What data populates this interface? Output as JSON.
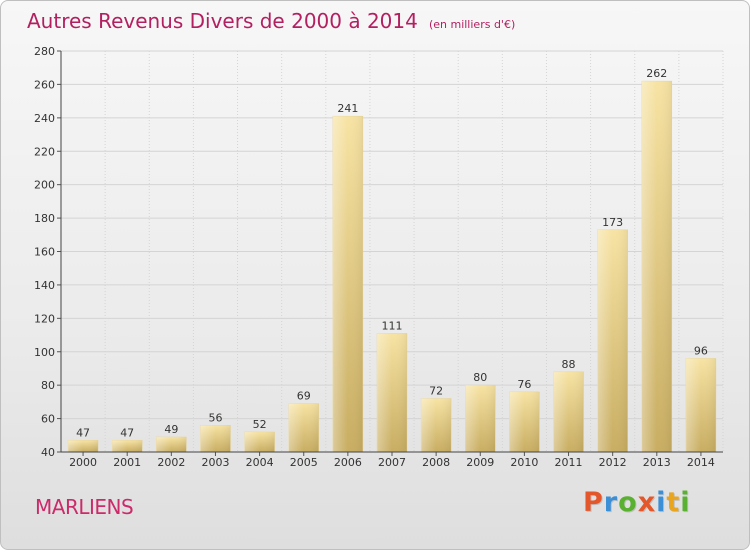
{
  "header": {
    "title": "Autres Revenus Divers de 2000 à 2014",
    "subtitle": "(en milliers d'€)"
  },
  "footer": {
    "commune": "MARLIENS",
    "brand": "Proxiti",
    "brand_colors": [
      "#e3572b",
      "#3a8fd6",
      "#5ab031",
      "#e3572b",
      "#3a8fd6",
      "#e8a51d",
      "#5ab031"
    ]
  },
  "colors": {
    "bar_light": "#f7e3a3",
    "bar_dark": "#c8ad62",
    "grid": "#d4d4d4",
    "title": "#b22060"
  },
  "chart_data": {
    "type": "bar",
    "categories": [
      "2000",
      "2001",
      "2002",
      "2003",
      "2004",
      "2005",
      "2006",
      "2007",
      "2008",
      "2009",
      "2010",
      "2011",
      "2012",
      "2013",
      "2014"
    ],
    "values": [
      47,
      47,
      49,
      56,
      52,
      69,
      241,
      111,
      72,
      80,
      76,
      88,
      173,
      262,
      96
    ],
    "ylim": [
      40,
      280
    ],
    "yticks": [
      40,
      60,
      80,
      100,
      120,
      140,
      160,
      180,
      200,
      220,
      240,
      260,
      280
    ],
    "grid": true
  }
}
